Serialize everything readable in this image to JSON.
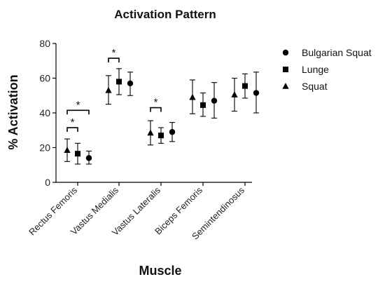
{
  "chart_data": {
    "type": "scatter",
    "title": "Activation Pattern",
    "xlabel": "Muscle",
    "ylabel": "% Activation",
    "ylim": [
      0,
      80
    ],
    "yticks": [
      0,
      20,
      40,
      60,
      80
    ],
    "categories": [
      "Rectus Femoris",
      "Vastus Medialis",
      "Vastus Lateralis",
      "Biceps Femoris",
      "Semintendinosus"
    ],
    "series": [
      {
        "name": "Squat",
        "marker": "triangle",
        "values": [
          18.5,
          53,
          28.5,
          49,
          50.5
        ],
        "err_low": [
          12,
          45,
          21.5,
          39.5,
          41
        ],
        "err_high": [
          25,
          61.5,
          35.5,
          59,
          60
        ]
      },
      {
        "name": "Lunge",
        "marker": "square",
        "values": [
          16.5,
          58,
          27,
          44.5,
          55.5
        ],
        "err_low": [
          10.5,
          50.5,
          22.5,
          38,
          48.5
        ],
        "err_high": [
          22.5,
          65.5,
          31.5,
          51.5,
          62.5
        ]
      },
      {
        "name": "Bulgarian Squat",
        "marker": "circle",
        "values": [
          14,
          57,
          29,
          47,
          51.5
        ],
        "err_low": [
          10.5,
          50,
          23.5,
          37,
          40
        ],
        "err_high": [
          18,
          63.5,
          34.5,
          57.5,
          63.5
        ]
      }
    ],
    "significance": [
      {
        "category": "Rectus Femoris",
        "from": "Squat",
        "to": "Lunge",
        "y": 31.5,
        "label": "*"
      },
      {
        "category": "Rectus Femoris",
        "from": "Squat",
        "to": "Bulgarian Squat",
        "y": 41.5,
        "label": "*"
      },
      {
        "category": "Vastus Medialis",
        "from": "Squat",
        "to": "Lunge",
        "y": 71.5,
        "label": "*"
      },
      {
        "category": "Vastus Lateralis",
        "from": "Squat",
        "to": "Lunge",
        "y": 43,
        "label": "*"
      }
    ],
    "legend": {
      "position": "top-right",
      "items": [
        {
          "label": "Bulgarian Squat",
          "marker": "circle"
        },
        {
          "label": "Lunge",
          "marker": "square"
        },
        {
          "label": "Squat",
          "marker": "triangle"
        }
      ]
    },
    "grid": false,
    "marker_color": "#000000"
  }
}
